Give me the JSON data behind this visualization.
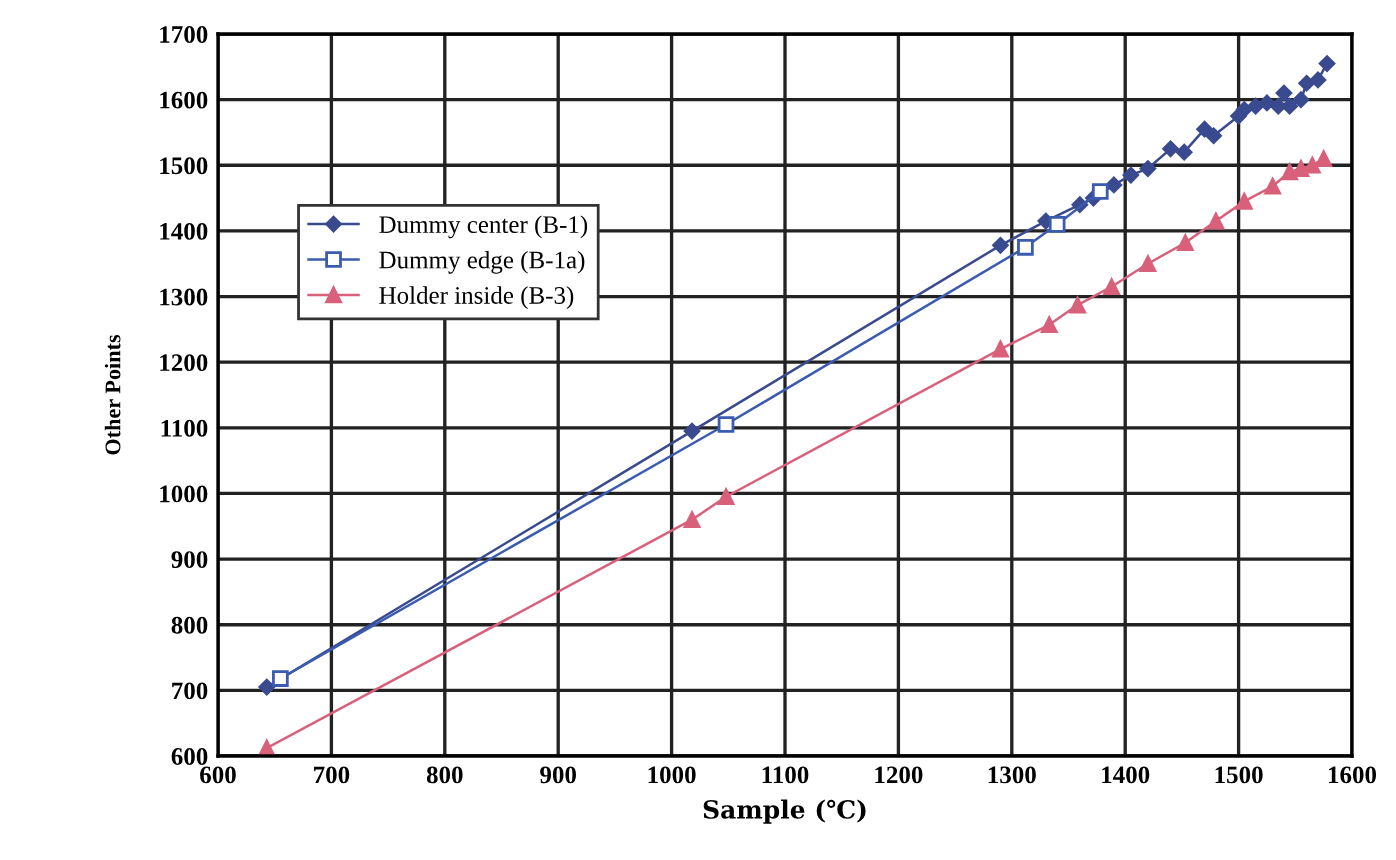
{
  "chart_data": {
    "type": "line",
    "xlabel": "Sample (℃)",
    "ylabel": "Other Points",
    "xlim": [
      600,
      1600
    ],
    "xticks": [
      600,
      700,
      800,
      900,
      1000,
      1100,
      1200,
      1300,
      1400,
      1500,
      1600
    ],
    "ylim": [
      600,
      1700
    ],
    "yticks": [
      600,
      700,
      800,
      900,
      1000,
      1100,
      1200,
      1300,
      1400,
      1500,
      1600,
      1700
    ],
    "grid": true,
    "legend": "top left",
    "series": [
      {
        "name": "Dummy center (B-1)",
        "color": "#3a4a8f",
        "marker": "diamond",
        "x": [
          643,
          1018,
          1290,
          1330,
          1360,
          1372,
          1390,
          1405,
          1420,
          1440,
          1452,
          1470,
          1478,
          1500,
          1505,
          1515,
          1525,
          1535,
          1540,
          1545,
          1555,
          1560,
          1570,
          1578
        ],
        "values": [
          705,
          1095,
          1378,
          1415,
          1440,
          1450,
          1470,
          1485,
          1495,
          1525,
          1520,
          1555,
          1545,
          1575,
          1585,
          1590,
          1595,
          1590,
          1610,
          1590,
          1600,
          1625,
          1630,
          1655
        ]
      },
      {
        "name": "Dummy edge (B-1a)",
        "color": "#3a5bb0",
        "marker": "square",
        "x": [
          655,
          1048,
          1312,
          1340,
          1378
        ],
        "values": [
          718,
          1105,
          1375,
          1410,
          1460
        ]
      },
      {
        "name": "Holder inside (B-3)",
        "color": "#d9607a",
        "marker": "triangle",
        "x": [
          643,
          1018,
          1048,
          1290,
          1333,
          1358,
          1388,
          1420,
          1453,
          1480,
          1505,
          1530,
          1545,
          1555,
          1565,
          1575
        ],
        "values": [
          612,
          960,
          995,
          1220,
          1257,
          1287,
          1315,
          1350,
          1382,
          1415,
          1445,
          1468,
          1490,
          1495,
          1500,
          1510
        ]
      }
    ]
  }
}
